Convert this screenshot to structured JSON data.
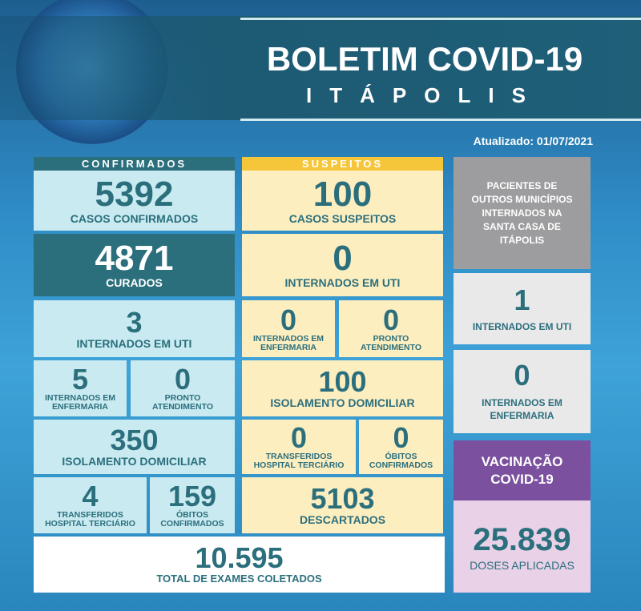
{
  "header": {
    "title": "BOLETIM COVID-19",
    "city": "ITÁPOLIS",
    "updated": "Atualizado: 01/07/2021"
  },
  "confirmados": {
    "header": "CONFIRMADOS",
    "casos": {
      "value": "5392",
      "label": "CASOS CONFIRMADOS"
    },
    "curados": {
      "value": "4871",
      "label": "CURADOS"
    },
    "uti": {
      "value": "3",
      "label": "INTERNADOS EM UTI"
    },
    "enfermaria": {
      "value": "5",
      "label": "INTERNADOS EM ENFERMARIA"
    },
    "pronto": {
      "value": "0",
      "label": "PRONTO ATENDIMENTO"
    },
    "isolamento": {
      "value": "350",
      "label": "ISOLAMENTO DOMICILIAR"
    },
    "transferidos": {
      "value": "4",
      "label": "TRANSFERIDOS HOSPITAL TERCIÁRIO"
    },
    "obitos": {
      "value": "159",
      "label": "ÓBITOS CONFIRMADOS"
    }
  },
  "suspeitos": {
    "header": "SUSPEITOS",
    "casos": {
      "value": "100",
      "label": "CASOS SUSPEITOS"
    },
    "uti": {
      "value": "0",
      "label": "INTERNADOS EM UTI"
    },
    "enfermaria": {
      "value": "0",
      "label": "INTERNADOS EM ENFERMARIA"
    },
    "pronto": {
      "value": "0",
      "label": "PRONTO ATENDIMENTO"
    },
    "isolamento": {
      "value": "100",
      "label": "ISOLAMENTO DOMICILIAR"
    },
    "transferidos": {
      "value": "0",
      "label": "TRANSFERIDOS HOSPITAL TERCIÁRIO"
    },
    "obitos": {
      "value": "0",
      "label": "ÓBITOS CONFIRMADOS"
    },
    "descartados": {
      "value": "5103",
      "label": "DESCARTADOS"
    }
  },
  "total": {
    "value": "10.595",
    "label": "TOTAL DE EXAMES COLETADOS"
  },
  "outros": {
    "header": "PACIENTES DE OUTROS MUNICÍPIOS INTERNADOS NA SANTA CASA DE ITÁPOLIS",
    "uti": {
      "value": "1",
      "label": "INTERNADOS EM UTI"
    },
    "enfermaria": {
      "value": "0",
      "label": "INTERNADOS EM ENFERMARIA"
    }
  },
  "vacinacao": {
    "header": "VACINAÇÃO COVID-19",
    "value": "25.839",
    "label": "DOSES APLICADAS"
  },
  "colors": {
    "teal": "#2b6f7d",
    "light_blue": "#c9eaf0",
    "yellow": "#fdeec0",
    "yellow_header": "#f6c63a",
    "gray": "#9d9d9f",
    "purple": "#7b519f",
    "pink": "#e9d1e8"
  }
}
